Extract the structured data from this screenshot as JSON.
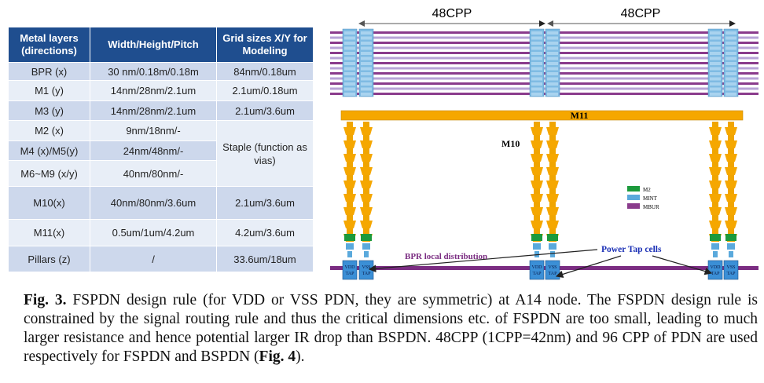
{
  "table": {
    "header": [
      "Metal layers (directions)",
      "Width/Height/Pitch",
      "Grid sizes X/Y for Modeling"
    ],
    "rows": [
      [
        "BPR (x)",
        "30 nm/0.18m/0.18m",
        "84nm/0.18um"
      ],
      [
        "M1 (y)",
        "14nm/28nm/2.1um",
        "2.1um/0.18um"
      ],
      [
        "M3 (y)",
        "14nm/28nm/2.1um",
        "2.1um/3.6um"
      ],
      [
        "M2 (x)",
        "9nm/18nm/-",
        "Staple (function as vias)"
      ],
      [
        "M4 (x)/M5(y)",
        "24nm/48nm/-"
      ],
      [
        "M6~M9 (x/y)",
        "40nm/80nm/-"
      ],
      [
        "M10(x)",
        "40nm/80nm/3.6um",
        "2.1um/3.6um"
      ],
      [
        "M11(x)",
        "0.5um/1um/4.2um",
        "4.2um/3.6um"
      ],
      [
        "Pillars (z)",
        "/",
        "33.6um/18um"
      ]
    ]
  },
  "diagram": {
    "pitch_labels": [
      "48CPP",
      "48CPP"
    ],
    "m11": "M11",
    "m10": "M10",
    "legend": [
      "M2",
      "MINT",
      "MBUR"
    ],
    "bpr": "BPR local distribution",
    "power_tap": "Power Tap cells",
    "tap": {
      "vdd": "VDD",
      "vss": "VSS",
      "tap": "TAP"
    }
  },
  "caption": {
    "label": "Fig. 3.",
    "text": " FSPDN design rule (for VDD or VSS PDN, they are symmetric) at A14 node. The FSPDN design rule is constrained by the signal routing rule and thus the critical dimensions etc. of FSPDN are too small, leading to much larger resistance and hence potential larger IR drop than BSPDN. 48CPP (1CPP=42nm) and 96 CPP of PDN are used respectively for FSPDN and BSPDN (",
    "ref": "Fig. 4",
    "end": ")."
  }
}
